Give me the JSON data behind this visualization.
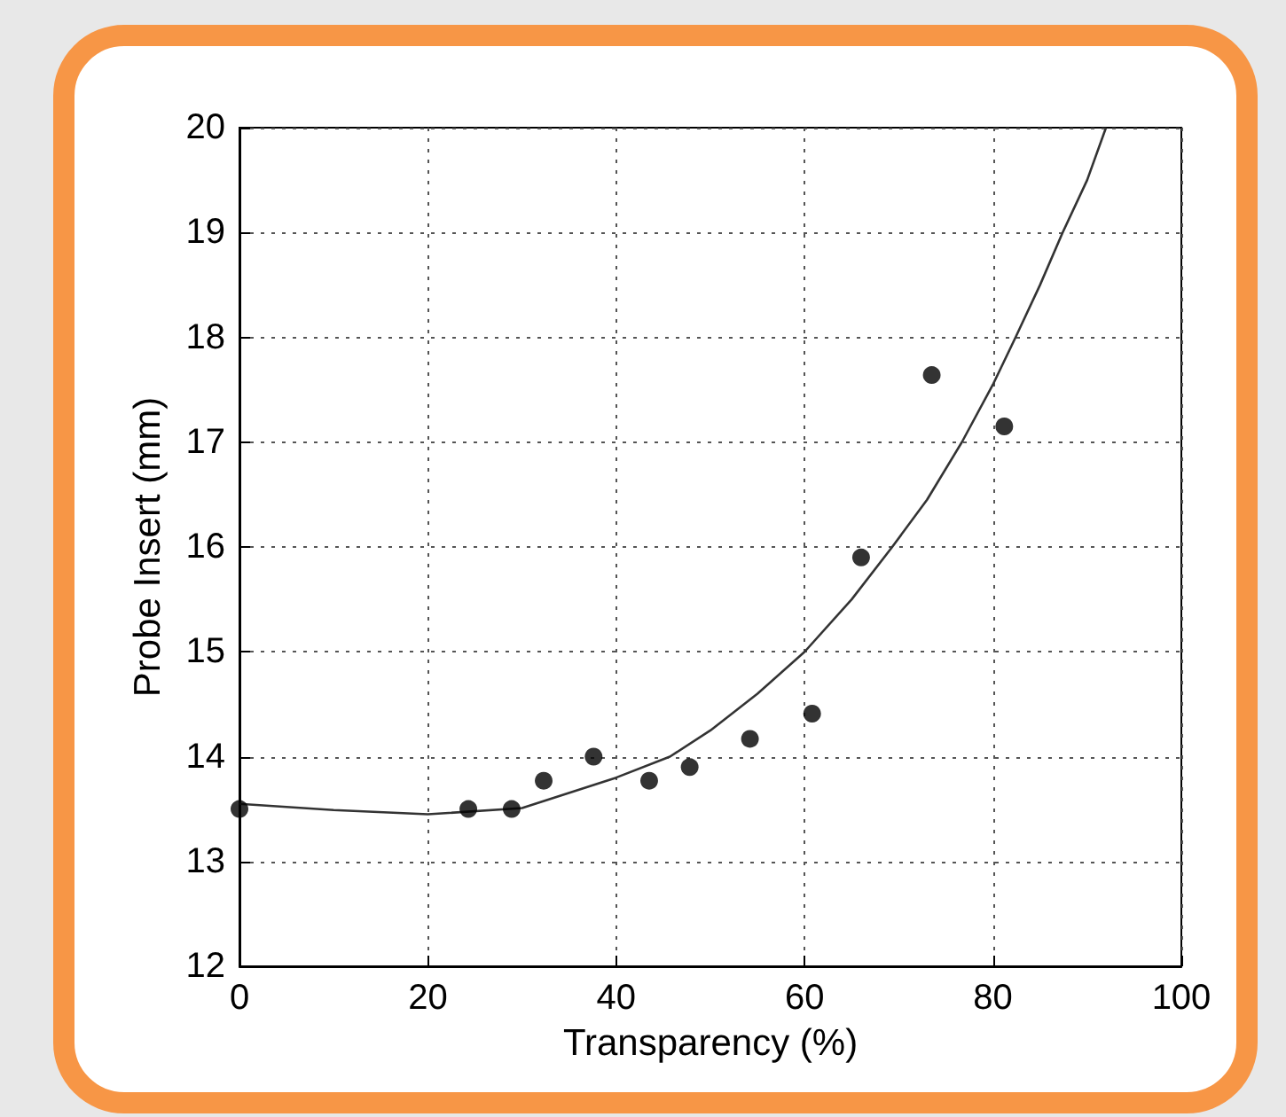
{
  "chart_data": {
    "type": "scatter",
    "xlabel": "Transparency (%)",
    "ylabel": "Probe Insert (mm)",
    "xlim": [
      0,
      100
    ],
    "xticks": [
      0,
      20,
      40,
      60,
      80,
      100
    ],
    "ylim": [
      12,
      20
    ],
    "yticks": [
      12,
      13,
      14,
      15,
      16,
      17,
      18,
      19,
      20
    ],
    "grid": true,
    "series": [
      {
        "marker": "circle",
        "color": "#000000",
        "x": [
          0,
          24.3,
          28.9,
          32.3,
          37.6,
          43.5,
          47.8,
          54.2,
          60.8,
          66.0,
          73.5,
          81.2
        ],
        "values": [
          13.5,
          13.5,
          13.5,
          13.77,
          14.0,
          13.77,
          13.9,
          14.17,
          14.41,
          15.9,
          17.64,
          17.15
        ]
      },
      {
        "type": "line",
        "marker": "none",
        "line_style": "solid",
        "color": "#333333",
        "x": [
          0,
          10,
          20,
          30,
          40,
          45.7,
          50,
          55,
          60,
          65,
          69.3,
          73,
          76.7,
          80,
          82.4,
          85,
          87.4,
          90,
          92
        ],
        "values": [
          13.55,
          13.49,
          13.45,
          13.51,
          13.8,
          14.0,
          14.25,
          14.6,
          15.0,
          15.5,
          16.0,
          16.45,
          17.0,
          17.55,
          18.0,
          18.5,
          19.0,
          19.5,
          20.0
        ]
      }
    ]
  }
}
